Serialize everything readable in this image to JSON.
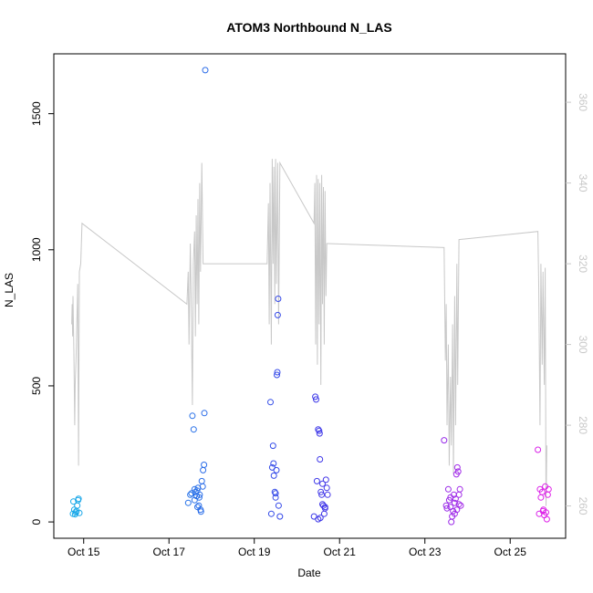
{
  "chart_data": {
    "type": "scatter",
    "title": "ATOM3 Northbound N_LAS",
    "xlabel": "Date",
    "ylabel": "N_LAS",
    "x_ticks": [
      "Oct 15",
      "Oct 17",
      "Oct 19",
      "Oct 21",
      "Oct 23",
      "Oct 25"
    ],
    "x_tick_days": [
      15,
      17,
      19,
      21,
      23,
      25
    ],
    "xlim": [
      14.3,
      26.3
    ],
    "ylim": [
      -60,
      1720
    ],
    "y_ticks": [
      0,
      500,
      1000,
      1500
    ],
    "y2_ticks": [
      260,
      280,
      300,
      320,
      340,
      360
    ],
    "y2lim": [
      252,
      372
    ],
    "colors": {
      "scatter_start": "#17a9e8",
      "scatter_mid": "#3a3ae8",
      "scatter_end": "#e020e8",
      "secondary_line": "#c8c8c8",
      "axis": "#000000",
      "axis_right": "#c8c8c8"
    },
    "series": [
      {
        "points": [
          [
            14.75,
            30
          ],
          [
            14.78,
            45
          ],
          [
            14.8,
            28
          ],
          [
            14.82,
            35
          ],
          [
            14.85,
            60
          ],
          [
            14.87,
            80
          ],
          [
            14.9,
            33
          ],
          [
            14.76,
            75
          ],
          [
            14.83,
            40
          ],
          [
            14.88,
            85
          ],
          [
            17.45,
            70
          ],
          [
            17.5,
            100
          ],
          [
            17.53,
            105
          ],
          [
            17.55,
            390
          ],
          [
            17.58,
            340
          ],
          [
            17.6,
            120
          ],
          [
            17.62,
            110
          ],
          [
            17.65,
            95
          ],
          [
            17.67,
            55
          ],
          [
            17.68,
            125
          ],
          [
            17.7,
            60
          ],
          [
            17.72,
            100
          ],
          [
            17.74,
            45
          ],
          [
            17.75,
            38
          ],
          [
            17.77,
            150
          ],
          [
            17.79,
            130
          ],
          [
            17.8,
            190
          ],
          [
            17.82,
            210
          ],
          [
            17.83,
            400
          ],
          [
            17.85,
            1660
          ],
          [
            17.6,
            80
          ],
          [
            17.66,
            115
          ],
          [
            17.71,
            90
          ],
          [
            19.38,
            440
          ],
          [
            19.4,
            30
          ],
          [
            19.42,
            200
          ],
          [
            19.44,
            280
          ],
          [
            19.45,
            215
          ],
          [
            19.46,
            170
          ],
          [
            19.48,
            110
          ],
          [
            19.5,
            90
          ],
          [
            19.52,
            190
          ],
          [
            19.53,
            540
          ],
          [
            19.54,
            550
          ],
          [
            19.55,
            760
          ],
          [
            19.56,
            820
          ],
          [
            19.57,
            60
          ],
          [
            19.6,
            20
          ],
          [
            19.5,
            105
          ],
          [
            20.4,
            20
          ],
          [
            20.43,
            460
          ],
          [
            20.45,
            450
          ],
          [
            20.47,
            150
          ],
          [
            20.5,
            340
          ],
          [
            20.52,
            335
          ],
          [
            20.53,
            325
          ],
          [
            20.54,
            230
          ],
          [
            20.56,
            110
          ],
          [
            20.58,
            100
          ],
          [
            20.6,
            140
          ],
          [
            20.62,
            60
          ],
          [
            20.64,
            30
          ],
          [
            20.66,
            50
          ],
          [
            20.68,
            155
          ],
          [
            20.7,
            125
          ],
          [
            20.72,
            100
          ],
          [
            20.5,
            10
          ],
          [
            20.55,
            15
          ],
          [
            20.6,
            65
          ],
          [
            20.66,
            55
          ],
          [
            23.45,
            300
          ],
          [
            23.5,
            60
          ],
          [
            23.52,
            50
          ],
          [
            23.55,
            120
          ],
          [
            23.57,
            80
          ],
          [
            23.6,
            90
          ],
          [
            23.62,
            0
          ],
          [
            23.64,
            20
          ],
          [
            23.66,
            40
          ],
          [
            23.68,
            100
          ],
          [
            23.7,
            70
          ],
          [
            23.72,
            85
          ],
          [
            23.74,
            175
          ],
          [
            23.76,
            200
          ],
          [
            23.78,
            185
          ],
          [
            23.8,
            100
          ],
          [
            23.82,
            120
          ],
          [
            23.84,
            60
          ],
          [
            23.6,
            55
          ],
          [
            23.7,
            30
          ],
          [
            23.75,
            45
          ],
          [
            23.8,
            65
          ],
          [
            25.65,
            265
          ],
          [
            25.68,
            30
          ],
          [
            25.7,
            120
          ],
          [
            25.72,
            90
          ],
          [
            25.75,
            110
          ],
          [
            25.77,
            40
          ],
          [
            25.8,
            25
          ],
          [
            25.82,
            130
          ],
          [
            25.84,
            35
          ],
          [
            25.86,
            10
          ],
          [
            25.88,
            100
          ],
          [
            25.9,
            120
          ],
          [
            25.78,
            45
          ]
        ]
      },
      {
        "axis": "right",
        "points": [
          [
            14.72,
            305
          ],
          [
            14.73,
            310
          ],
          [
            14.74,
            302
          ],
          [
            14.75,
            312
          ],
          [
            14.77,
            298
          ],
          [
            14.79,
            280
          ],
          [
            14.8,
            290
          ],
          [
            14.82,
            296
          ],
          [
            14.84,
            305
          ],
          [
            14.86,
            315
          ],
          [
            14.88,
            270
          ],
          [
            14.9,
            318
          ],
          [
            14.93,
            320
          ],
          [
            14.96,
            330
          ],
          [
            17.42,
            310
          ],
          [
            17.45,
            318
          ],
          [
            17.47,
            300
          ],
          [
            17.5,
            325
          ],
          [
            17.52,
            312
          ],
          [
            17.55,
            285
          ],
          [
            17.57,
            320
          ],
          [
            17.6,
            328
          ],
          [
            17.62,
            302
          ],
          [
            17.64,
            332
          ],
          [
            17.66,
            310
          ],
          [
            17.68,
            336
          ],
          [
            17.7,
            305
          ],
          [
            17.72,
            340
          ],
          [
            17.74,
            318
          ],
          [
            17.77,
            345
          ],
          [
            17.8,
            320
          ],
          [
            19.3,
            320
          ],
          [
            19.33,
            335
          ],
          [
            19.35,
            305
          ],
          [
            19.37,
            340
          ],
          [
            19.4,
            300
          ],
          [
            19.42,
            346
          ],
          [
            19.44,
            320
          ],
          [
            19.46,
            344
          ],
          [
            19.48,
            310
          ],
          [
            19.5,
            346
          ],
          [
            19.52,
            315
          ],
          [
            19.55,
            345
          ],
          [
            19.57,
            305
          ],
          [
            19.6,
            345
          ],
          [
            20.4,
            330
          ],
          [
            20.42,
            340
          ],
          [
            20.44,
            300
          ],
          [
            20.46,
            342
          ],
          [
            20.48,
            295
          ],
          [
            20.5,
            341
          ],
          [
            20.52,
            305
          ],
          [
            20.54,
            340
          ],
          [
            20.56,
            290
          ],
          [
            20.58,
            342
          ],
          [
            20.6,
            310
          ],
          [
            20.62,
            339
          ],
          [
            20.64,
            300
          ],
          [
            20.66,
            338
          ],
          [
            20.68,
            312
          ],
          [
            20.7,
            325
          ],
          [
            20.73,
            325
          ],
          [
            23.45,
            324
          ],
          [
            23.48,
            296
          ],
          [
            23.5,
            310
          ],
          [
            23.52,
            280
          ],
          [
            23.55,
            300
          ],
          [
            23.57,
            270
          ],
          [
            23.6,
            292
          ],
          [
            23.62,
            275
          ],
          [
            23.65,
            305
          ],
          [
            23.67,
            268
          ],
          [
            23.7,
            312
          ],
          [
            23.72,
            280
          ],
          [
            23.75,
            320
          ],
          [
            23.77,
            290
          ],
          [
            23.8,
            326
          ],
          [
            25.65,
            328
          ],
          [
            25.67,
            315
          ],
          [
            25.7,
            280
          ],
          [
            25.72,
            320
          ],
          [
            25.75,
            295
          ],
          [
            25.77,
            318
          ],
          [
            25.8,
            290
          ],
          [
            25.82,
            319
          ],
          [
            25.84,
            260
          ],
          [
            25.86,
            275
          ]
        ]
      }
    ],
    "legend": "none",
    "grid": false
  }
}
